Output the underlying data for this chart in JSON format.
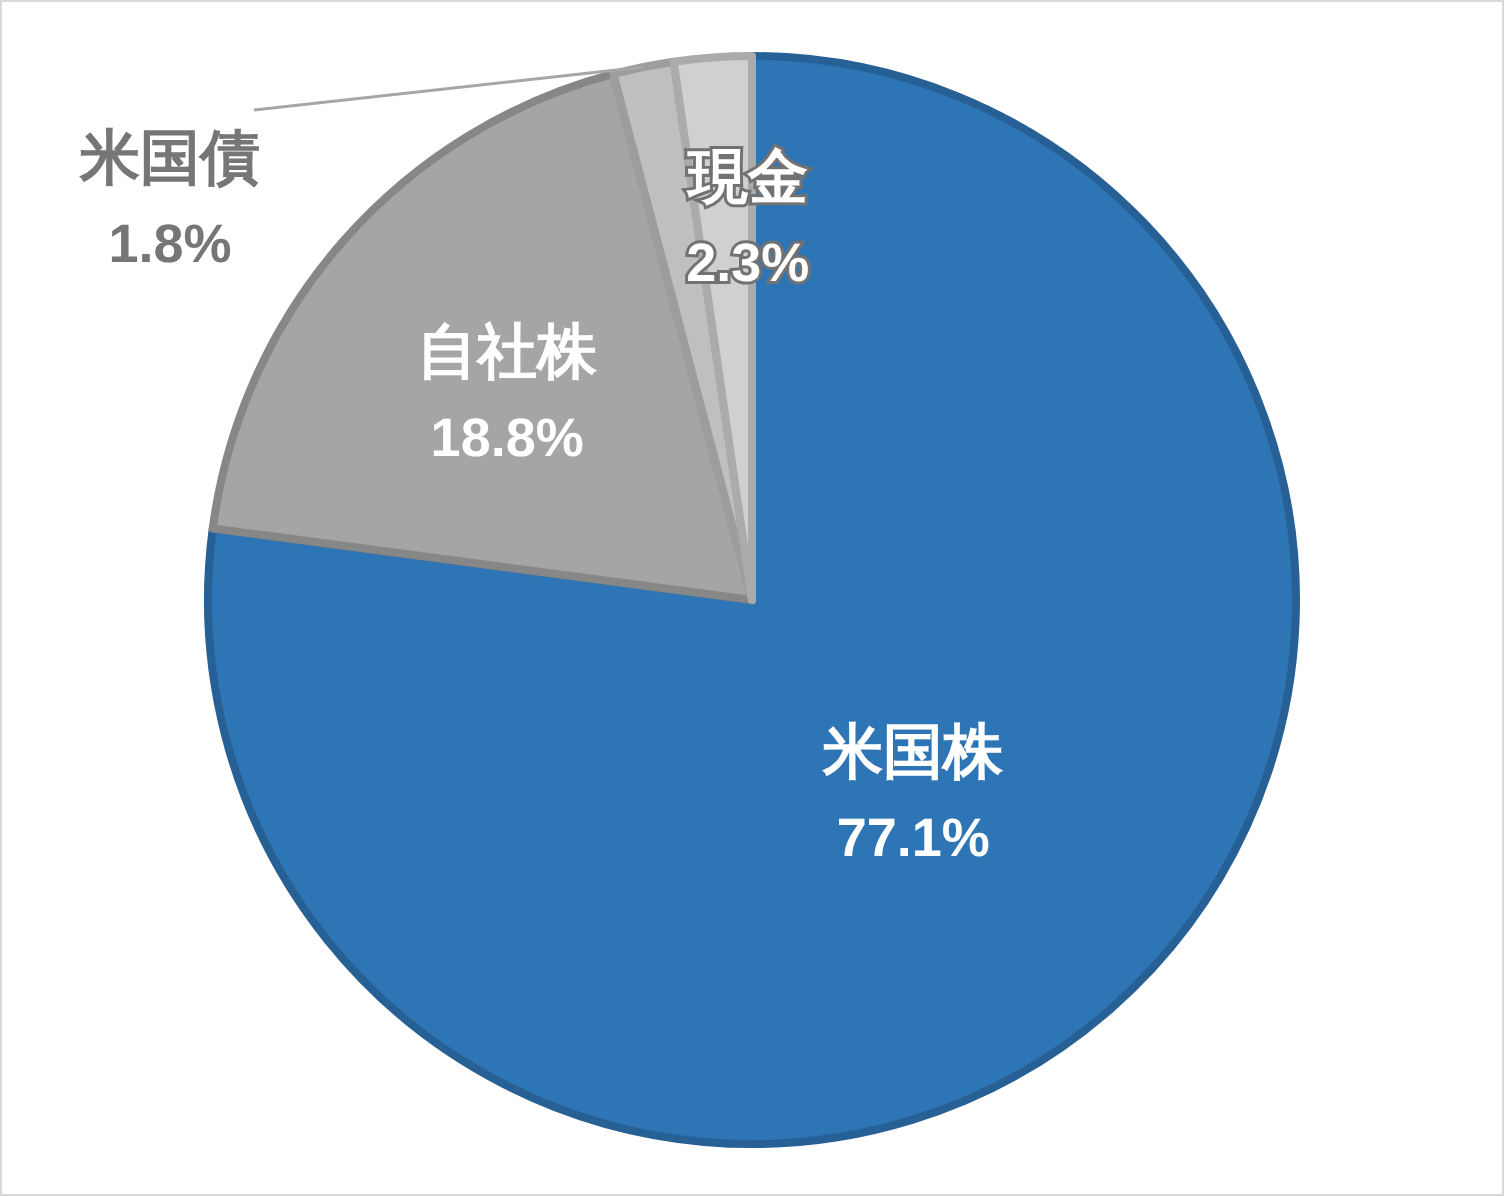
{
  "chart_data": {
    "type": "pie",
    "categories": [
      "米国株",
      "自社株",
      "米国債",
      "現金"
    ],
    "values": [
      77.1,
      18.8,
      1.8,
      2.3
    ],
    "value_labels": [
      "77.1%",
      "18.8%",
      "1.8%",
      "2.3%"
    ],
    "colors": [
      "#2e75b6",
      "#a5a5a5",
      "#bfbfbf",
      "#d0d0d0"
    ],
    "legend": false
  }
}
